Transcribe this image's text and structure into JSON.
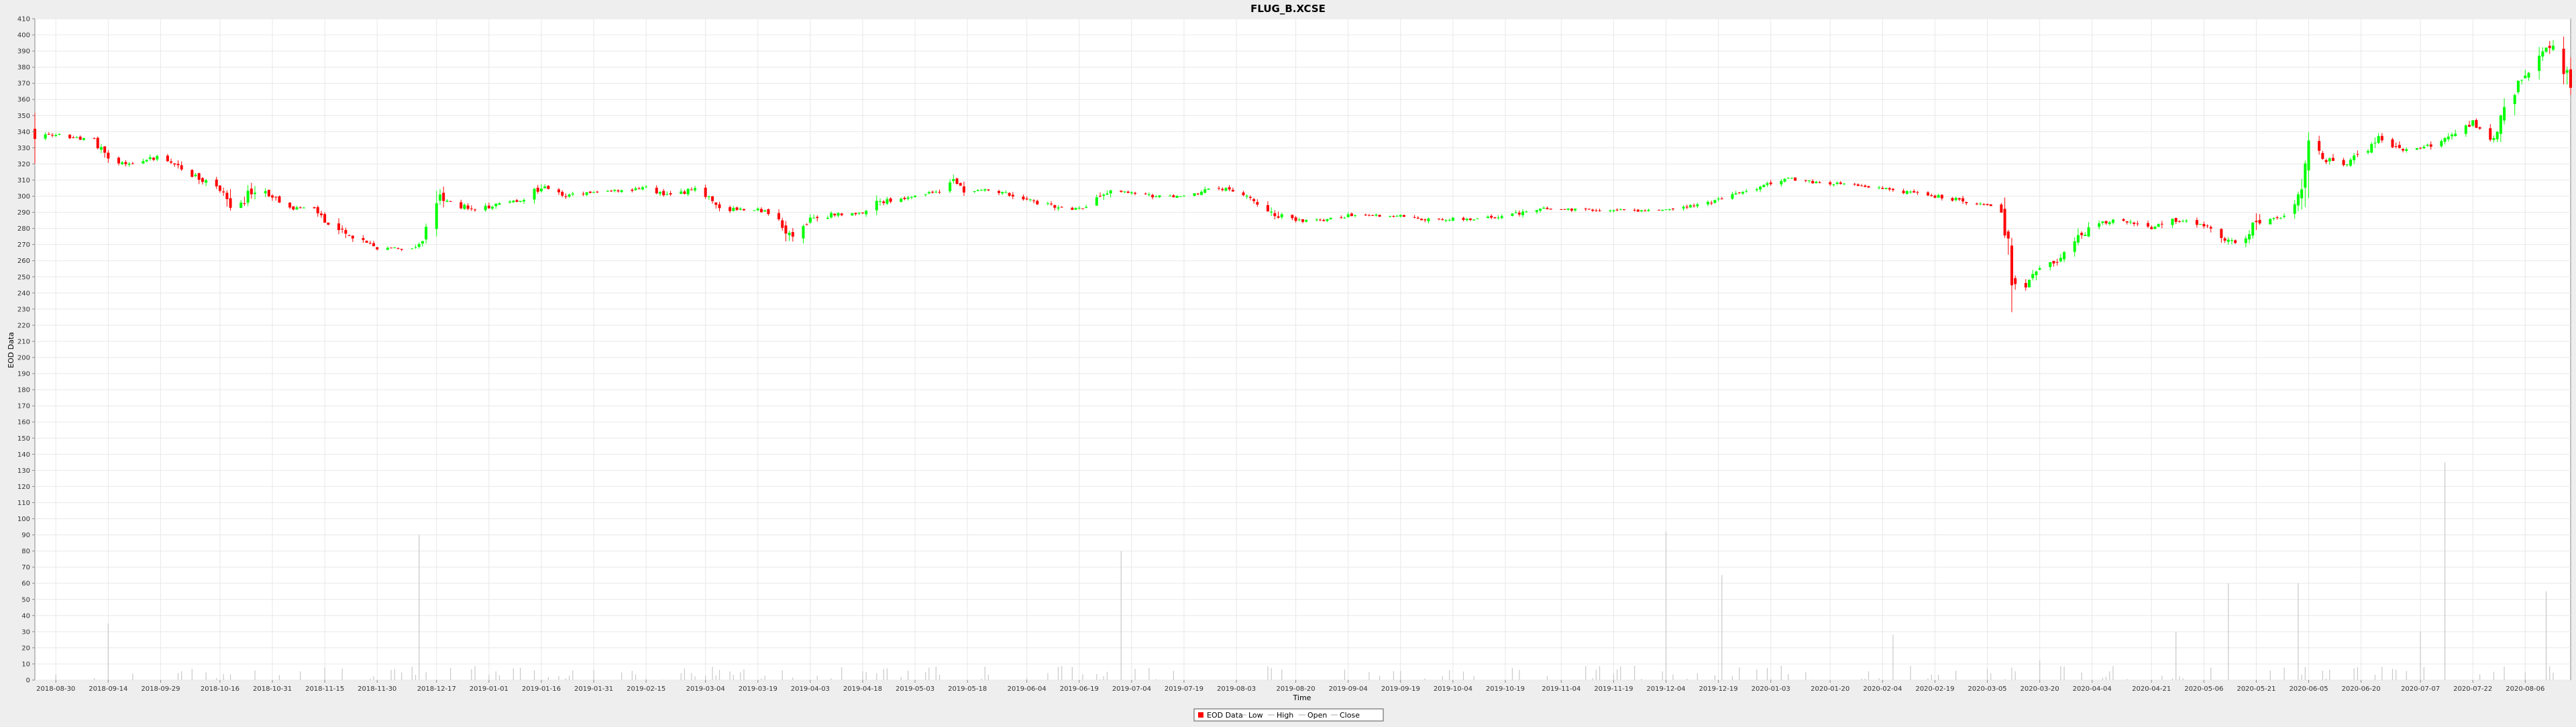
{
  "chart_data": {
    "type": "candlestick",
    "title": "FLUG_B.XCSE",
    "xlabel": "Time",
    "ylabel": "EOD Data",
    "ylim": [
      0,
      410
    ],
    "y_ticks": [
      0,
      10,
      20,
      30,
      40,
      50,
      60,
      70,
      80,
      90,
      100,
      110,
      120,
      130,
      140,
      150,
      160,
      170,
      180,
      190,
      200,
      210,
      220,
      230,
      240,
      250,
      260,
      270,
      280,
      290,
      300,
      310,
      320,
      330,
      340,
      350,
      360,
      370,
      380,
      390,
      400,
      410
    ],
    "x_ticks": [
      "2018-08-30",
      "2018-09-14",
      "2018-09-29",
      "2018-10-16",
      "2018-10-31",
      "2018-11-15",
      "2018-11-30",
      "2018-12-17",
      "2019-01-01",
      "2019-01-16",
      "2019-01-31",
      "2019-02-15",
      "2019-03-04",
      "2019-03-19",
      "2019-04-03",
      "2019-04-18",
      "2019-05-03",
      "2019-05-18",
      "2019-06-04",
      "2019-06-19",
      "2019-07-04",
      "2019-07-19",
      "2019-08-03",
      "2019-08-20",
      "2019-09-04",
      "2019-09-19",
      "2019-10-04",
      "2019-10-19",
      "2019-11-04",
      "2019-11-19",
      "2019-12-04",
      "2019-12-19",
      "2020-01-03",
      "2020-01-20",
      "2020-02-04",
      "2020-02-19",
      "2020-03-05",
      "2020-03-20",
      "2020-04-04",
      "2020-04-21",
      "2020-05-06",
      "2020-05-21",
      "2020-06-05",
      "2020-06-20",
      "2020-07-07",
      "2020-07-22",
      "2020-08-06"
    ],
    "x_range": [
      "2018-08-24",
      "2020-08-19"
    ],
    "grid": true,
    "legend_position": "bottom-center",
    "legend": [
      "EOD Data",
      "Low",
      "High",
      "Open",
      "Close"
    ],
    "colors": {
      "up": "#00ff00",
      "down": "#ff0000",
      "volume": "#c8c8c8",
      "background": "#ffffff",
      "grid": "#e8e8e8"
    },
    "price_keypoints": [
      [
        "2018-08-24",
        340
      ],
      [
        "2018-09-05",
        336
      ],
      [
        "2018-09-10",
        335
      ],
      [
        "2018-09-14",
        322
      ],
      [
        "2018-09-20",
        320
      ],
      [
        "2018-09-29",
        325
      ],
      [
        "2018-10-05",
        318
      ],
      [
        "2018-10-10",
        311
      ],
      [
        "2018-10-16",
        305
      ],
      [
        "2018-10-20",
        290
      ],
      [
        "2018-10-26",
        305
      ],
      [
        "2018-10-31",
        300
      ],
      [
        "2018-11-05",
        293
      ],
      [
        "2018-11-12",
        292
      ],
      [
        "2018-11-15",
        285
      ],
      [
        "2018-11-20",
        277
      ],
      [
        "2018-11-25",
        272
      ],
      [
        "2018-11-30",
        268
      ],
      [
        "2018-12-05",
        268
      ],
      [
        "2018-12-10",
        267
      ],
      [
        "2018-12-13",
        272
      ],
      [
        "2018-12-17",
        296
      ],
      [
        "2018-12-20",
        297
      ],
      [
        "2018-12-28",
        291
      ],
      [
        "2019-01-04",
        296
      ],
      [
        "2019-01-10",
        297
      ],
      [
        "2019-01-16",
        306
      ],
      [
        "2019-01-22",
        300
      ],
      [
        "2019-01-31",
        302
      ],
      [
        "2019-02-05",
        303
      ],
      [
        "2019-02-15",
        305
      ],
      [
        "2019-02-22",
        300
      ],
      [
        "2019-03-01",
        305
      ],
      [
        "2019-03-04",
        299
      ],
      [
        "2019-03-10",
        292
      ],
      [
        "2019-03-19",
        292
      ],
      [
        "2019-03-25",
        286
      ],
      [
        "2019-03-28",
        275
      ],
      [
        "2019-04-03",
        285
      ],
      [
        "2019-04-10",
        289
      ],
      [
        "2019-04-18",
        289
      ],
      [
        "2019-04-22",
        296
      ],
      [
        "2019-05-03",
        300
      ],
      [
        "2019-05-10",
        303
      ],
      [
        "2019-05-14",
        310
      ],
      [
        "2019-05-18",
        303
      ],
      [
        "2019-05-25",
        304
      ],
      [
        "2019-06-04",
        298
      ],
      [
        "2019-06-12",
        293
      ],
      [
        "2019-06-19",
        292
      ],
      [
        "2019-06-28",
        303
      ],
      [
        "2019-07-04",
        302
      ],
      [
        "2019-07-10",
        300
      ],
      [
        "2019-07-19",
        300
      ],
      [
        "2019-07-28",
        305
      ],
      [
        "2019-08-03",
        303
      ],
      [
        "2019-08-10",
        295
      ],
      [
        "2019-08-15",
        288
      ],
      [
        "2019-08-20",
        285
      ],
      [
        "2019-08-28",
        285
      ],
      [
        "2019-09-04",
        288
      ],
      [
        "2019-09-12",
        288
      ],
      [
        "2019-09-19",
        288
      ],
      [
        "2019-09-28",
        285
      ],
      [
        "2019-10-04",
        286
      ],
      [
        "2019-10-12",
        286
      ],
      [
        "2019-10-19",
        288
      ],
      [
        "2019-10-28",
        292
      ],
      [
        "2019-11-04",
        292
      ],
      [
        "2019-11-12",
        291
      ],
      [
        "2019-11-19",
        292
      ],
      [
        "2019-11-28",
        291
      ],
      [
        "2019-12-04",
        292
      ],
      [
        "2019-12-12",
        294
      ],
      [
        "2019-12-19",
        298
      ],
      [
        "2019-12-28",
        303
      ],
      [
        "2020-01-03",
        309
      ],
      [
        "2020-01-08",
        311
      ],
      [
        "2020-01-14",
        309
      ],
      [
        "2020-01-20",
        308
      ],
      [
        "2020-01-28",
        307
      ],
      [
        "2020-02-04",
        305
      ],
      [
        "2020-02-12",
        302
      ],
      [
        "2020-02-19",
        300
      ],
      [
        "2020-02-25",
        298
      ],
      [
        "2020-02-28",
        295
      ],
      [
        "2020-03-05",
        295
      ],
      [
        "2020-03-09",
        290
      ],
      [
        "2020-03-12",
        250
      ],
      [
        "2020-03-16",
        245
      ],
      [
        "2020-03-20",
        255
      ],
      [
        "2020-03-26",
        262
      ],
      [
        "2020-03-31",
        275
      ],
      [
        "2020-04-04",
        283
      ],
      [
        "2020-04-12",
        285
      ],
      [
        "2020-04-16",
        283
      ],
      [
        "2020-04-21",
        280
      ],
      [
        "2020-04-26",
        285
      ],
      [
        "2020-05-01",
        285
      ],
      [
        "2020-05-06",
        282
      ],
      [
        "2020-05-11",
        275
      ],
      [
        "2020-05-16",
        270
      ],
      [
        "2020-05-21",
        284
      ],
      [
        "2020-05-28",
        286
      ],
      [
        "2020-06-02",
        298
      ],
      [
        "2020-06-05",
        333
      ],
      [
        "2020-06-10",
        322
      ],
      [
        "2020-06-15",
        318
      ],
      [
        "2020-06-20",
        327
      ],
      [
        "2020-06-25",
        335
      ],
      [
        "2020-07-01",
        328
      ],
      [
        "2020-07-07",
        330
      ],
      [
        "2020-07-14",
        335
      ],
      [
        "2020-07-22",
        345
      ],
      [
        "2020-07-28",
        335
      ],
      [
        "2020-08-02",
        363
      ],
      [
        "2020-08-06",
        372
      ],
      [
        "2020-08-10",
        385
      ],
      [
        "2020-08-14",
        393
      ],
      [
        "2020-08-19",
        370
      ]
    ],
    "volume_spikes": [
      [
        "2018-09-14",
        35
      ],
      [
        "2018-12-12",
        90
      ],
      [
        "2019-05-18",
        30
      ],
      [
        "2019-07-01",
        80
      ],
      [
        "2019-12-04",
        92
      ],
      [
        "2019-12-20",
        65
      ],
      [
        "2020-02-07",
        28
      ],
      [
        "2020-03-20",
        12
      ],
      [
        "2020-04-28",
        30
      ],
      [
        "2020-05-13",
        60
      ],
      [
        "2020-05-24",
        38
      ],
      [
        "2020-06-02",
        60
      ],
      [
        "2020-06-06",
        42
      ],
      [
        "2020-07-07",
        30
      ],
      [
        "2020-07-14",
        135
      ],
      [
        "2020-08-01",
        50
      ],
      [
        "2020-08-12",
        55
      ],
      [
        "2020-08-15",
        35
      ]
    ]
  }
}
